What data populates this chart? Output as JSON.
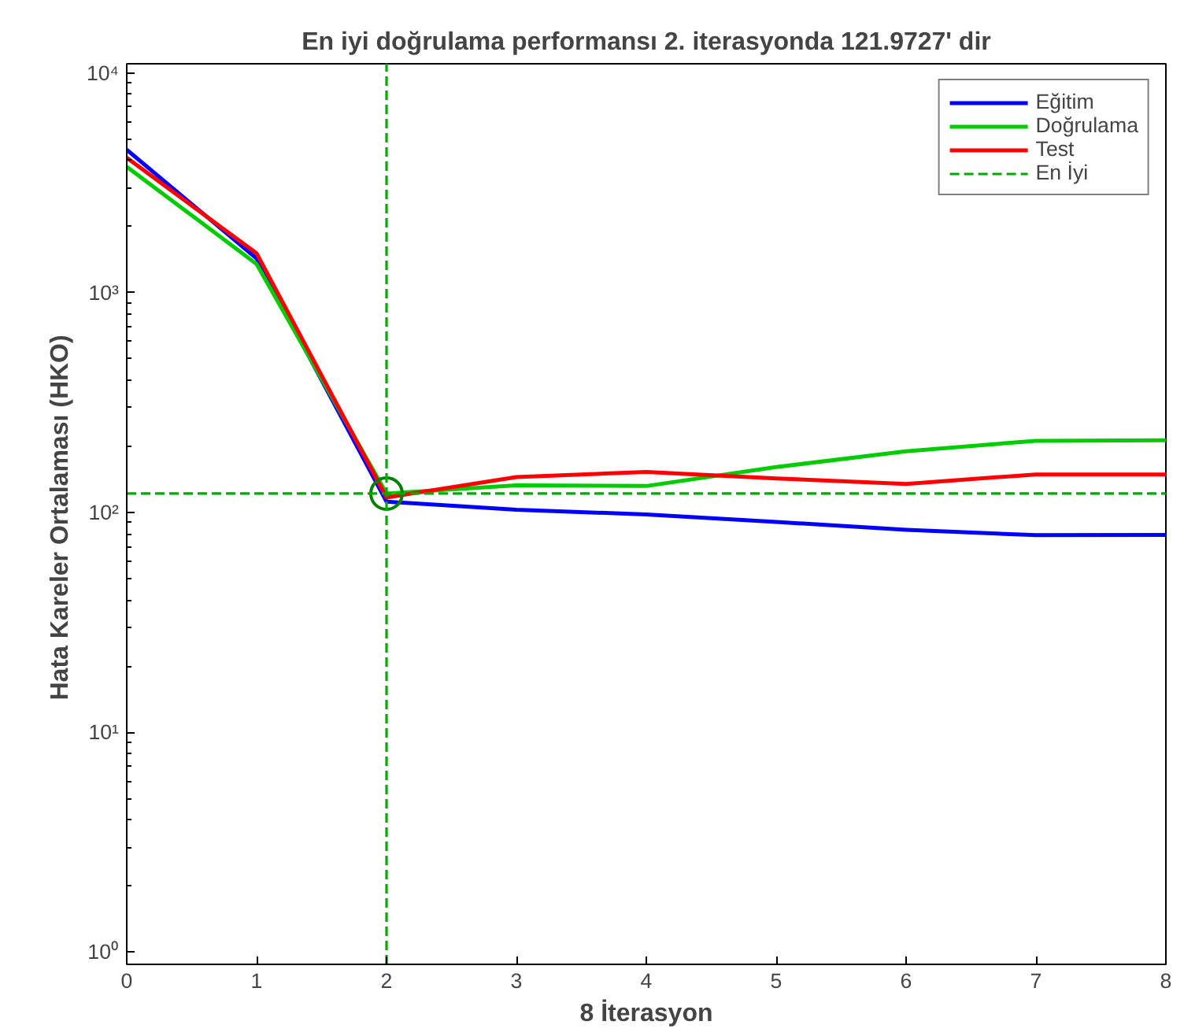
{
  "chart_data": {
    "type": "line",
    "title": "En iyi doğrulama performansı 2. iterasyonda 121.9727' dir",
    "xlabel": "8 İterasyon",
    "ylabel": "Hata Kareler Ortalaması  (HKO)",
    "x": [
      0,
      1,
      2,
      3,
      4,
      5,
      6,
      7,
      8
    ],
    "series": [
      {
        "name": "Eğitim",
        "color": "#0000ff",
        "values": [
          4470,
          1430,
          112,
          103,
          98,
          90.6,
          83.4,
          78.9,
          79
        ]
      },
      {
        "name": "Doğrulama",
        "color": "#00cc00",
        "values": [
          3740,
          1350,
          121.9727,
          133,
          132,
          161,
          190,
          212,
          213
        ]
      },
      {
        "name": "Test",
        "color": "#ff0000",
        "values": [
          4110,
          1510,
          117,
          145,
          153,
          143,
          135,
          149,
          149
        ]
      },
      {
        "type": "scatter",
        "x": [
          2
        ],
        "color": "#008000",
        "values": [
          121.9727
        ],
        "marker": "circle"
      }
    ],
    "log": "y",
    "xlim": [
      0,
      8
    ],
    "ylim": [
      0.88,
      11000
    ],
    "xticks": [
      0,
      1,
      2,
      3,
      4,
      5,
      6,
      7,
      8
    ],
    "yticks": [
      {
        "value": 1,
        "label": "10⁰"
      },
      {
        "value": 10,
        "label": "10¹"
      },
      {
        "value": 100,
        "label": "10²"
      },
      {
        "value": 1000,
        "label": "10³"
      },
      {
        "value": 10000,
        "label": "10⁴"
      }
    ],
    "ref_lines": [
      {
        "axis": "x",
        "value": 2,
        "color": "#00aa00",
        "line_style": "dashed"
      },
      {
        "axis": "y",
        "value": 121.9727,
        "label": "En İyi",
        "color": "#00aa00",
        "line_style": "dashed"
      }
    ],
    "grid": false,
    "legend": "top right",
    "marker": "none",
    "line_style": "solid"
  }
}
